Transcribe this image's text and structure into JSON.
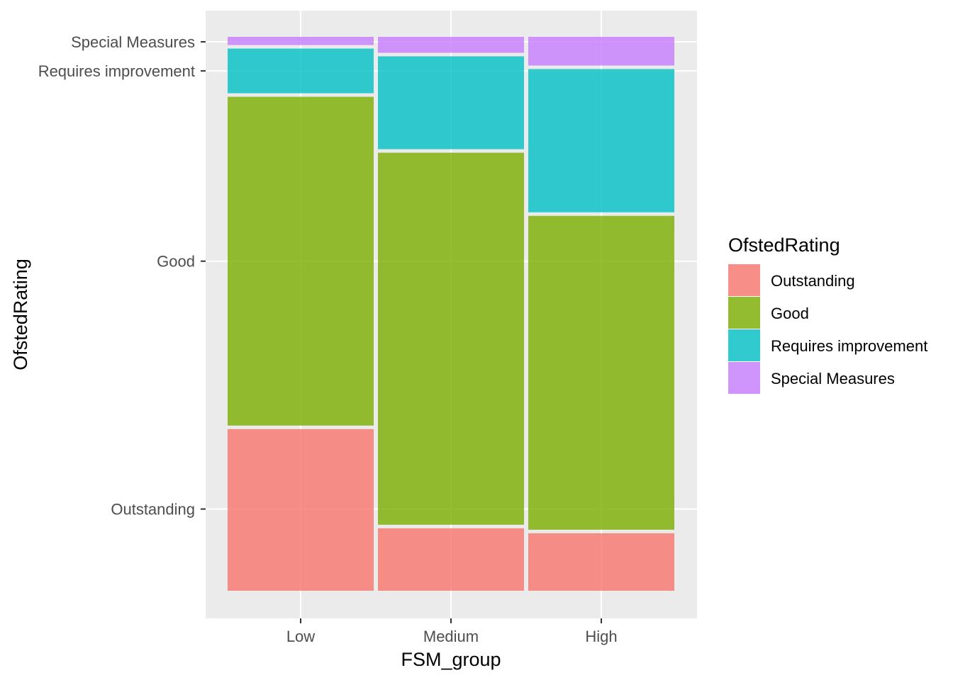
{
  "chart_data": {
    "type": "mosaic",
    "xlabel": "FSM_group",
    "ylabel": "OfstedRating",
    "legend_title": "OfstedRating",
    "legend_position": "right",
    "grid": true,
    "categories": [
      "Low",
      "Medium",
      "High"
    ],
    "series": [
      {
        "name": "Outstanding",
        "color": "#F8766D",
        "values": [
          0.295,
          0.116,
          0.107
        ]
      },
      {
        "name": "Good",
        "color": "#7CAE00",
        "values": [
          0.6,
          0.678,
          0.573
        ]
      },
      {
        "name": "Requires improvement",
        "color": "#00BFC4",
        "values": [
          0.087,
          0.174,
          0.265
        ]
      },
      {
        "name": "Special Measures",
        "color": "#C77CFF",
        "values": [
          0.018,
          0.032,
          0.055
        ]
      }
    ],
    "y_tick_labels": [
      "Outstanding",
      "Good",
      "Requires improvement",
      "Special Measures"
    ],
    "y_tick_categories_from": "Low"
  }
}
